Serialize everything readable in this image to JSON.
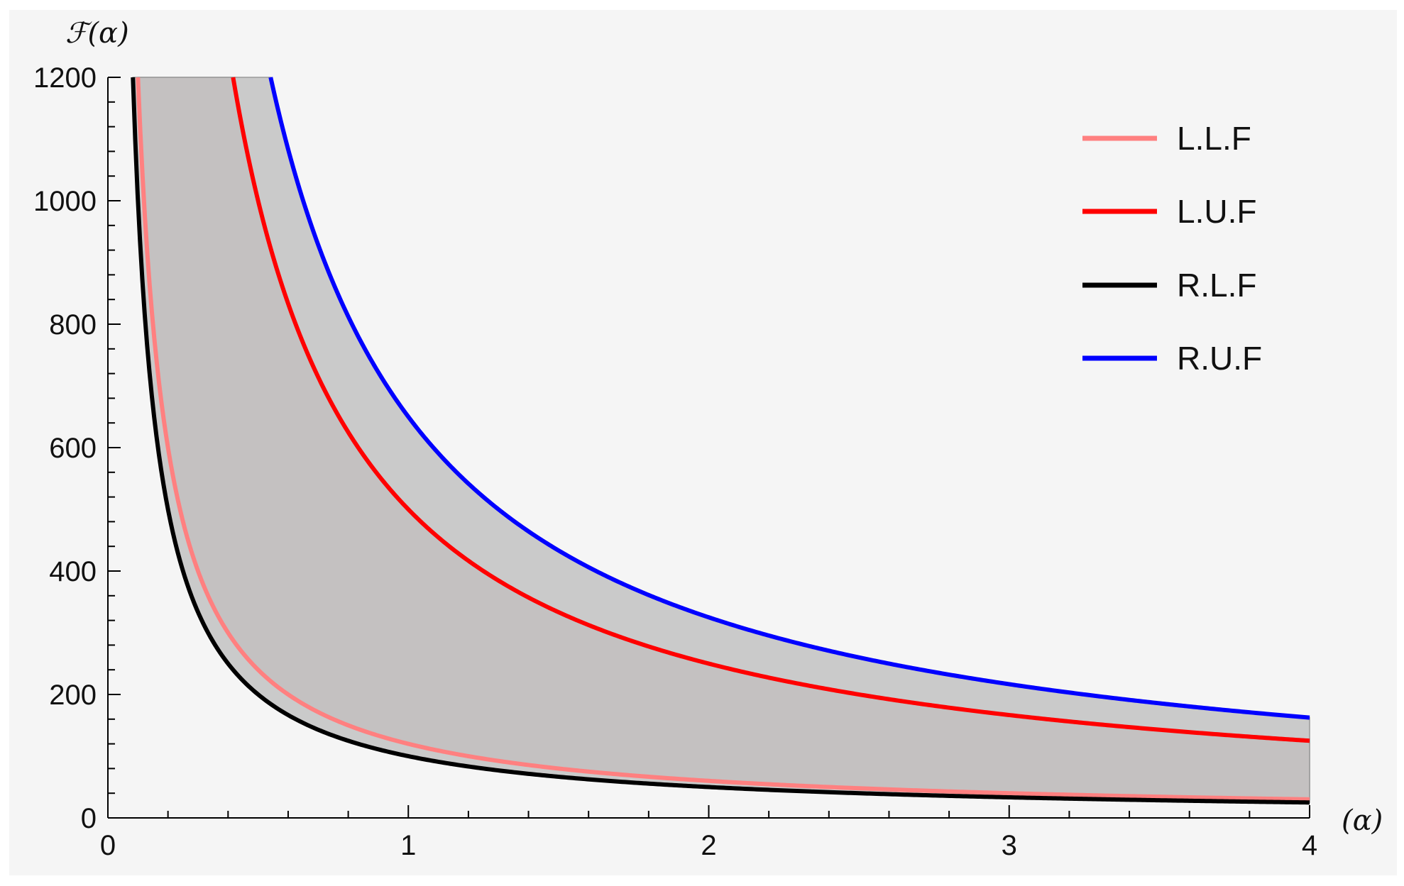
{
  "chart_data": {
    "type": "line",
    "title": "",
    "xlabel": "(α)",
    "ylabel": "ℱ(α)",
    "xlim": [
      0,
      4
    ],
    "ylim": [
      0,
      1200
    ],
    "x_ticks": [
      "0",
      "1",
      "2",
      "3",
      "4"
    ],
    "y_ticks": [
      "0",
      "200",
      "400",
      "600",
      "800",
      "1000",
      "1200"
    ],
    "grid": false,
    "legend_position": "top-right",
    "fills": [
      {
        "between": [
          "L.L.F",
          "L.U.F"
        ],
        "color": "#c4b2b2"
      },
      {
        "between": [
          "R.L.F",
          "R.U.F"
        ],
        "color": "#c2c2c2"
      }
    ],
    "series": [
      {
        "name": "L.L.F",
        "color": "#ff8080",
        "k": 120
      },
      {
        "name": "L.U.F",
        "color": "#ff0000",
        "k": 500
      },
      {
        "name": "R.L.F",
        "color": "#000000",
        "k": 100
      },
      {
        "name": "R.U.F",
        "color": "#0000ff",
        "k": 650
      }
    ]
  }
}
